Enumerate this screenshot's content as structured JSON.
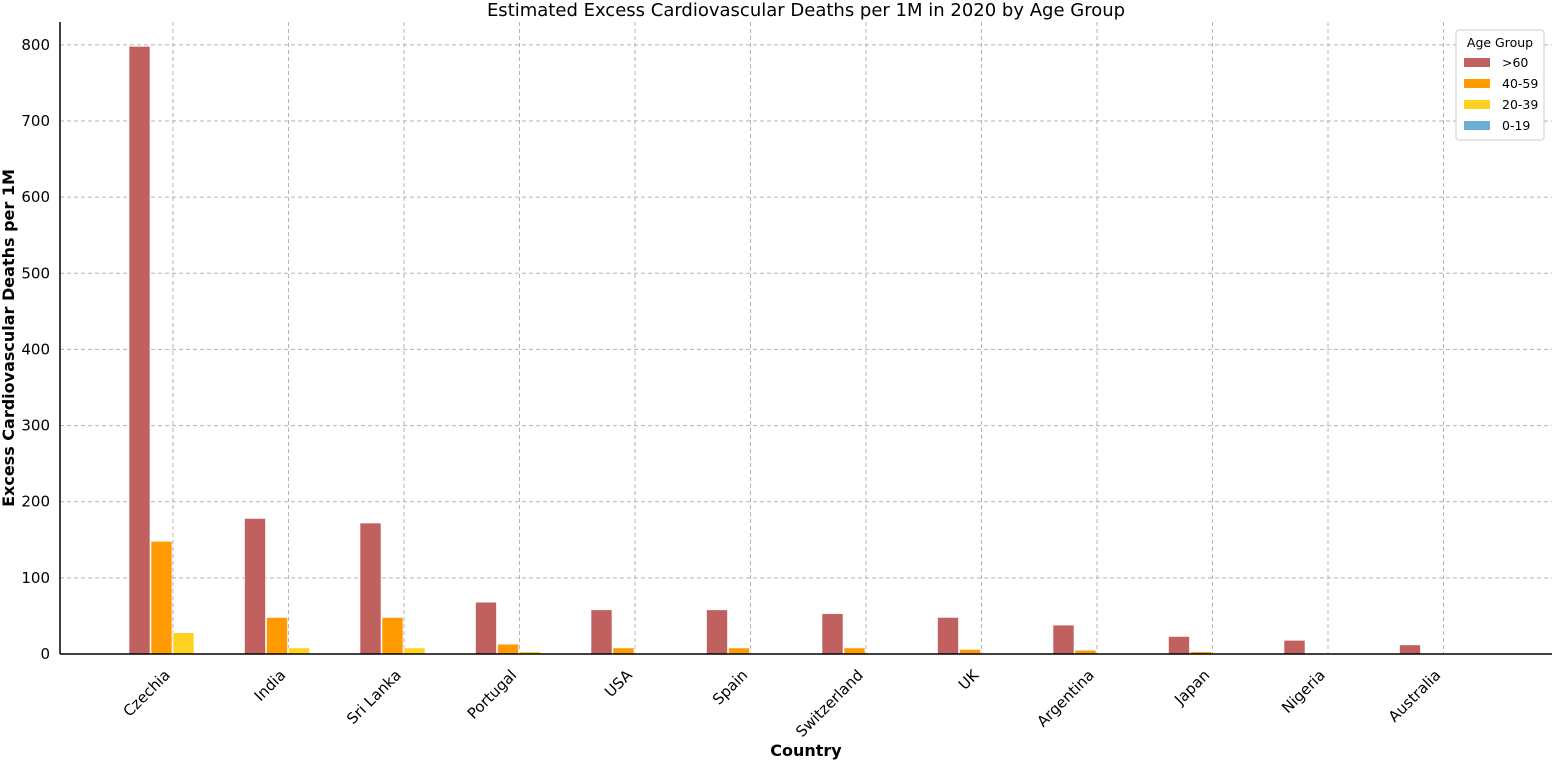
{
  "chart_data": {
    "type": "bar",
    "title": "Estimated Excess Cardiovascular Deaths per 1M in 2020 by Age Group",
    "xlabel": "Country",
    "ylabel": "Excess Cardiovascular Deaths per 1M",
    "ylim": [
      0,
      830
    ],
    "yticks": [
      0,
      100,
      200,
      300,
      400,
      500,
      600,
      700,
      800
    ],
    "grid": true,
    "legend": {
      "title": "Age Group",
      "position": "top-right"
    },
    "categories": [
      "Czechia",
      "India",
      "Sri Lanka",
      "Portugal",
      "USA",
      "Spain",
      "Switzerland",
      "UK",
      "Argentina",
      "Japan",
      "Nigeria",
      "Australia"
    ],
    "series": [
      {
        "name": ">60",
        "color": "#c0605f",
        "values": [
          798,
          178,
          172,
          68,
          58,
          58,
          53,
          48,
          38,
          23,
          18,
          12
        ]
      },
      {
        "name": "40-59",
        "color": "#ff9a00",
        "values": [
          148,
          48,
          48,
          13,
          8,
          8,
          8,
          6,
          5,
          3,
          1,
          1
        ]
      },
      {
        "name": "20-39",
        "color": "#ffd21f",
        "values": [
          28,
          8,
          8,
          3,
          1,
          1,
          1,
          1,
          0.5,
          0.5,
          0.3,
          0.3
        ]
      },
      {
        "name": "0-19",
        "color": "#6baed6",
        "values": [
          1,
          0.5,
          0.5,
          0.3,
          0.2,
          0.2,
          0.2,
          0.2,
          0.1,
          0.1,
          0.1,
          0.1
        ]
      }
    ]
  }
}
